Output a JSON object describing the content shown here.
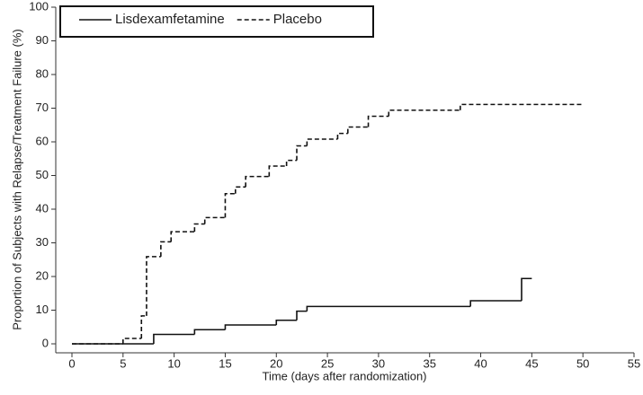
{
  "chart_data": {
    "type": "step",
    "x_label": "Time (days after randomization)",
    "y_label": "Proportion of Subjects with Relapse/Treatment Failure (%)",
    "xlim": [
      0,
      55
    ],
    "xticks": [
      0,
      5,
      10,
      15,
      20,
      25,
      30,
      35,
      40,
      45,
      50,
      55
    ],
    "ylim": [
      0,
      100
    ],
    "yticks": [
      0,
      10,
      20,
      30,
      40,
      50,
      60,
      70,
      80,
      90,
      100
    ],
    "grid": false,
    "legend": "top-left",
    "series": [
      {
        "name": "Lisdexamfetamine",
        "color": "#111111",
        "dash": "solid",
        "x": [
          0,
          8,
          12,
          15,
          20,
          22,
          23,
          39,
          44,
          45
        ],
        "values": [
          0,
          2.8,
          4.2,
          5.6,
          7.0,
          9.7,
          11.1,
          12.8,
          19.4,
          19.4
        ]
      },
      {
        "name": "Placebo",
        "color": "#111111",
        "dash": "dashed",
        "x": [
          0,
          5,
          6.8,
          7.3,
          8.7,
          9.7,
          12,
          13,
          15,
          16,
          17,
          19.3,
          21,
          22,
          23,
          26,
          27,
          29,
          31,
          38,
          50
        ],
        "values": [
          0,
          1.6,
          8.3,
          25.9,
          30.3,
          33.3,
          35.6,
          37.5,
          44.6,
          46.6,
          49.7,
          52.8,
          54.5,
          58.8,
          60.8,
          62.5,
          64.4,
          67.6,
          69.4,
          71.1,
          71.1
        ]
      }
    ]
  }
}
